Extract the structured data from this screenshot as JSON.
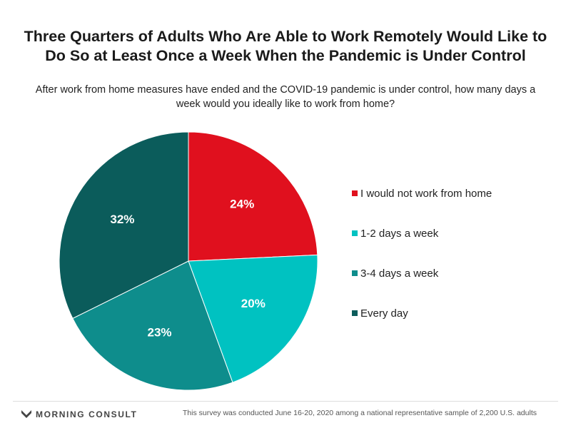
{
  "chart_data": {
    "type": "pie",
    "title_lines": [
      "Three Quarters of Adults Who Are Able to Work Remotely Would Like to",
      "Do So at Least Once a Week When the Pandemic is Under Control"
    ],
    "subtitle_lines": [
      "After work from home measures have ended and the COVID-19 pandemic is under control, how many days a",
      "week would you ideally like to work from home?"
    ],
    "slices": [
      {
        "label": "I would not work from home",
        "value": 24,
        "display": "24%",
        "color": "#e0101e"
      },
      {
        "label": "1-2 days a week",
        "value": 20,
        "display": "20%",
        "color": "#00c2c1"
      },
      {
        "label": "3-4 days a week",
        "value": 23,
        "display": "23%",
        "color": "#0e8d8c"
      },
      {
        "label": "Every day",
        "value": 32,
        "display": "32%",
        "color": "#0b5c5b"
      }
    ],
    "legend_position": "right"
  },
  "footer": {
    "brand": "MORNING CONSULT",
    "note": "This survey was conducted June 16-20, 2020 among a national representative sample of 2,200 U.S. adults"
  }
}
